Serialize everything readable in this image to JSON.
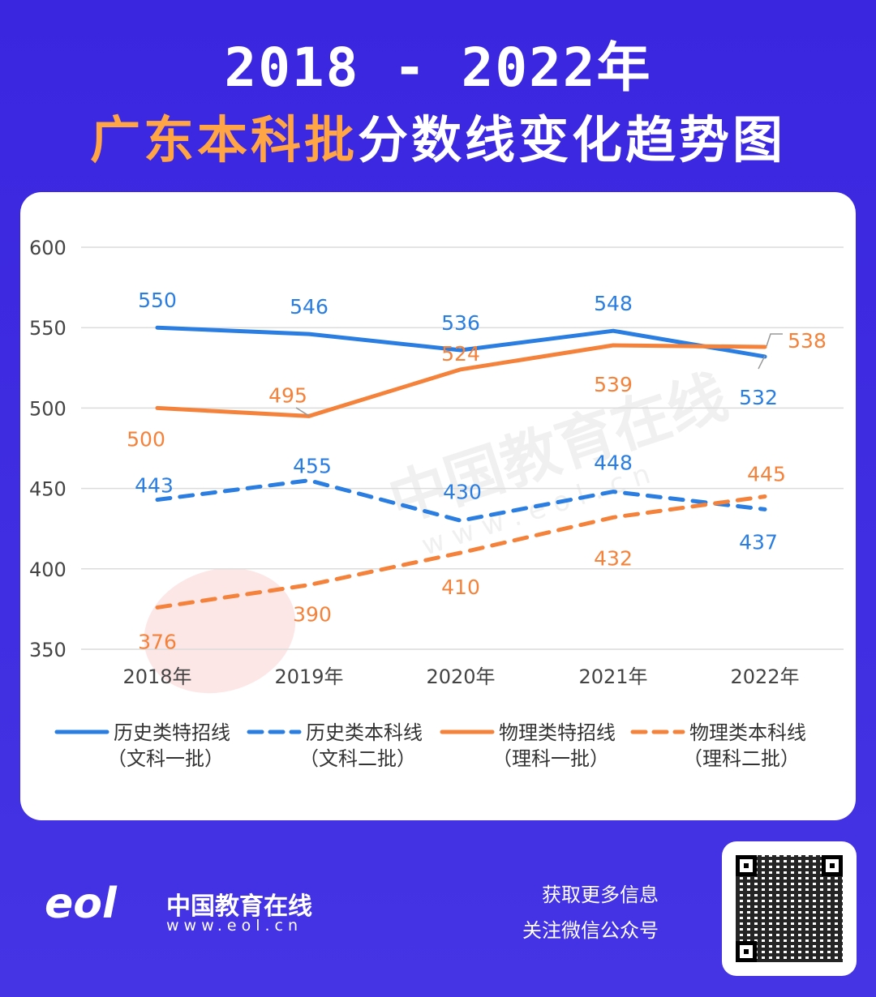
{
  "header": {
    "title_line1": "2018 - 2022年",
    "title_highlight": "广东本科批",
    "title_rest": "分数线变化趋势图"
  },
  "colors": {
    "blue": "#2a7de1",
    "orange": "#f5823a",
    "background": "#3d2ce2",
    "highlight": "#ffa545"
  },
  "chart_data": {
    "type": "line",
    "categories": [
      "2018年",
      "2019年",
      "2020年",
      "2021年",
      "2022年"
    ],
    "ylim": [
      350,
      600
    ],
    "yticks": [
      "350",
      "400",
      "450",
      "500",
      "550",
      "600"
    ],
    "grid": true,
    "legend_position": "bottom",
    "series": [
      {
        "name": "历史类特招线",
        "sub": "（文科一批）",
        "color": "#2a7de1",
        "style": "solid",
        "values": [
          550,
          546,
          536,
          548,
          532
        ]
      },
      {
        "name": "历史类本科线",
        "sub": "（文科二批）",
        "color": "#2a7de1",
        "style": "dashed",
        "values": [
          443,
          455,
          430,
          448,
          437
        ]
      },
      {
        "name": "物理类特招线",
        "sub": "（理科一批）",
        "color": "#f5823a",
        "style": "solid",
        "values": [
          500,
          495,
          524,
          539,
          538
        ]
      },
      {
        "name": "物理类本科线",
        "sub": "（理科二批）",
        "color": "#f5823a",
        "style": "dashed",
        "values": [
          376,
          390,
          410,
          432,
          445
        ]
      }
    ]
  },
  "watermark": {
    "text": "中国教育在线",
    "url": "w w w . e o l . c n"
  },
  "footer": {
    "logo_mark": "eol",
    "logo_name": "中国教育在线",
    "logo_url": "www.eol.cn",
    "promo_line1": "获取更多信息",
    "promo_line2": "关注微信公众号"
  }
}
